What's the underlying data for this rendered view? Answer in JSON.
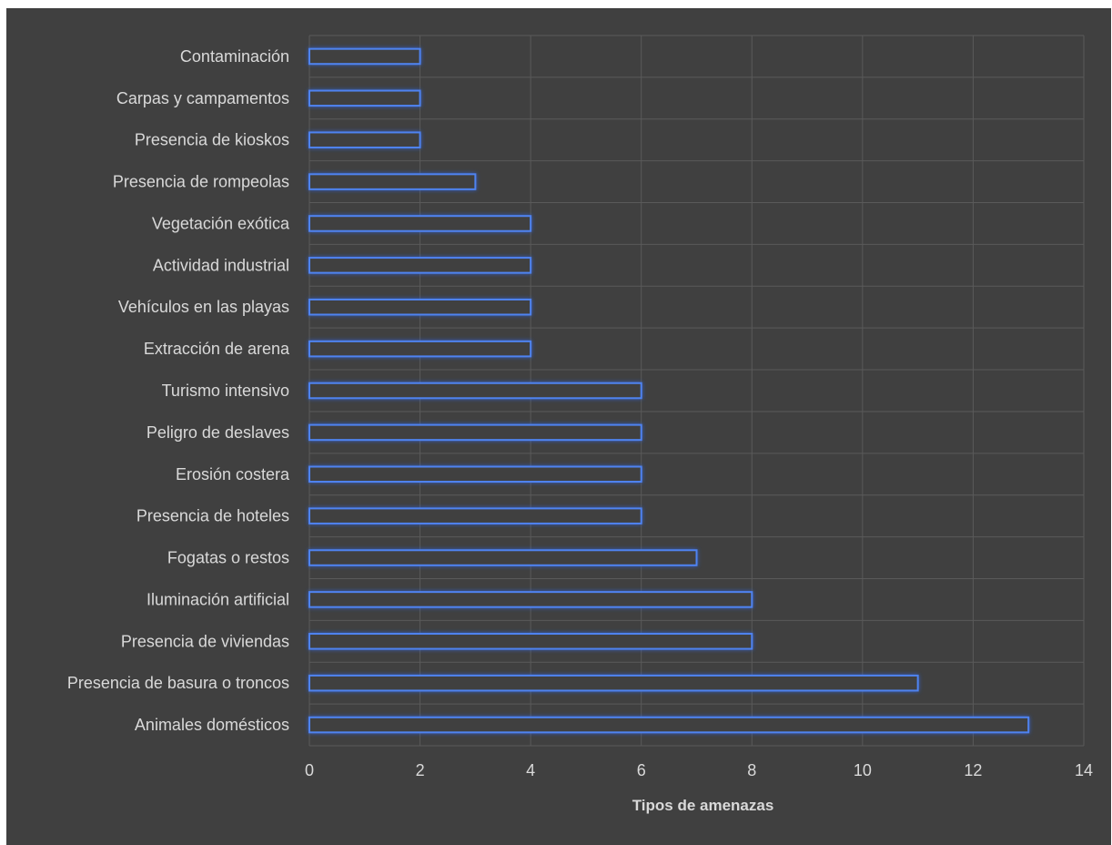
{
  "chart_data": {
    "type": "bar",
    "orientation": "horizontal",
    "categories": [
      "Contaminación",
      "Carpas y campamentos",
      "Presencia de kioskos",
      "Presencia de rompeolas",
      "Vegetación exótica",
      "Actividad industrial",
      "Vehículos en las playas",
      "Extracción de arena",
      "Turismo intensivo",
      "Peligro de deslaves",
      "Erosión costera",
      "Presencia de hoteles",
      "Fogatas o restos",
      "Iluminación artificial",
      "Presencia de viviendas",
      "Presencia de basura o troncos",
      "Animales domésticos"
    ],
    "values": [
      2,
      2,
      2,
      3,
      4,
      4,
      4,
      4,
      6,
      6,
      6,
      6,
      7,
      8,
      8,
      11,
      13
    ],
    "xlabel": "Tipos de amenazas",
    "ylabel": "",
    "xlim": [
      0,
      14
    ],
    "xticks": [
      0,
      2,
      4,
      6,
      8,
      10,
      12,
      14
    ],
    "grid": true,
    "colors": {
      "background": "#404040",
      "bar_outline": "#4f83f0",
      "grid": "#5a5a5a",
      "text": "#d9d9d9"
    }
  }
}
